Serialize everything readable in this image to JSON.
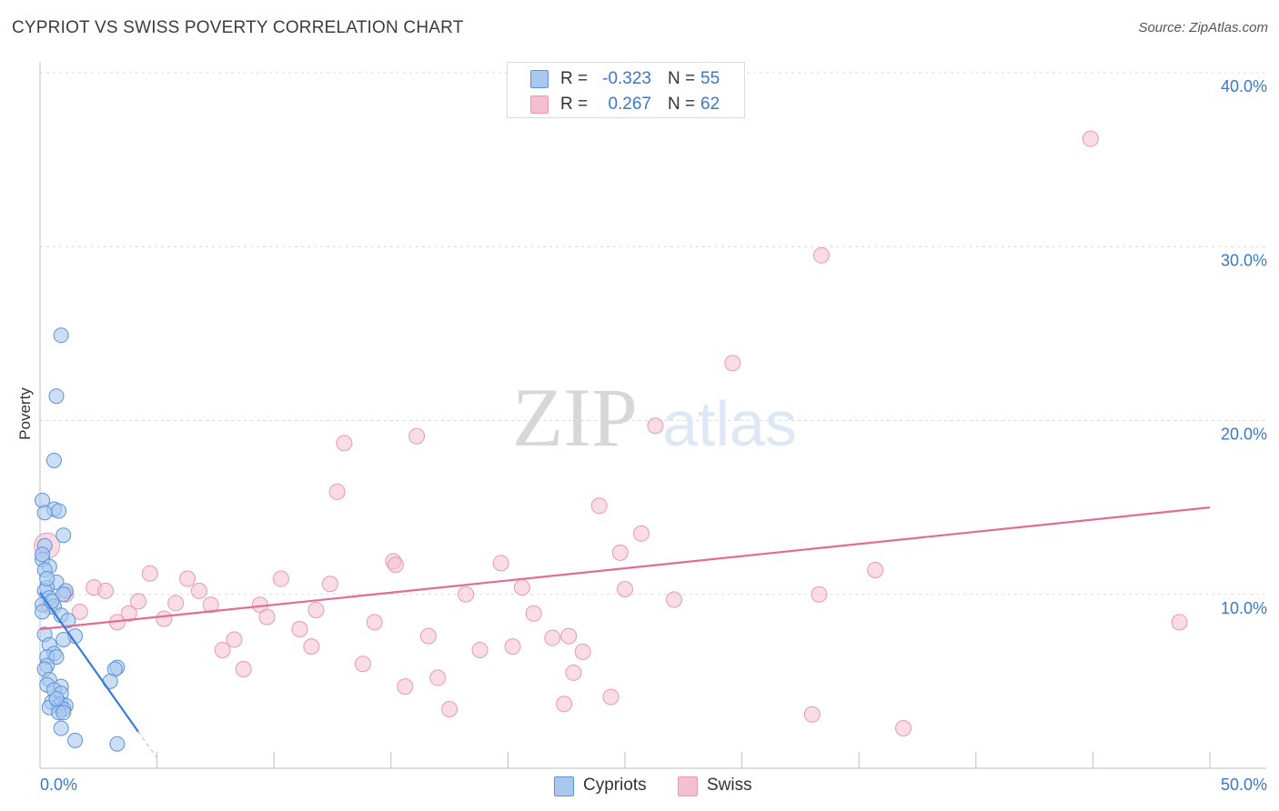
{
  "title": "CYPRIOT VS SWISS POVERTY CORRELATION CHART",
  "source": "Source: ZipAtlas.com",
  "watermark": {
    "zip": "ZIP",
    "atlas": "atlas"
  },
  "legend_top": {
    "rows": [
      {
        "r_label": "R =",
        "r_value": "-0.323",
        "n_label": "N =",
        "n_value": "55"
      },
      {
        "r_label": "R =",
        "r_value": "0.267",
        "n_label": "N =",
        "n_value": "62"
      }
    ]
  },
  "legend_bottom": {
    "cypriots": "Cypriots",
    "swiss": "Swiss"
  },
  "colors": {
    "cypriots_fill": "#a9c8f0",
    "cypriots_stroke": "#5b93d9",
    "cypriots_line": "#3a7bd5",
    "swiss_fill": "#f6bfd0",
    "swiss_stroke": "#e899b4",
    "swiss_line": "#e36b96",
    "tick_text": "#3b78c8",
    "grid": "#d8d8d8"
  },
  "chart_data": {
    "type": "scatter",
    "title": "CYPRIOT VS SWISS POVERTY CORRELATION CHART",
    "xlabel": "",
    "ylabel": "Poverty",
    "xlim": [
      0,
      50
    ],
    "ylim": [
      0,
      40
    ],
    "x_tick_labels": [
      "0.0%",
      "50.0%"
    ],
    "y_ticks": [
      10,
      20,
      30,
      40
    ],
    "y_tick_labels": [
      "10.0%",
      "20.0%",
      "30.0%",
      "40.0%"
    ],
    "grid": true,
    "legend_position": "top-center",
    "series": [
      {
        "name": "Cypriots",
        "R": -0.323,
        "N": 55,
        "trend": {
          "x0": 0.0,
          "y0": 10.1,
          "x1": 4.2,
          "y1": 2.1,
          "dash_to_x": 5.0,
          "dash_to_y": 0.6
        },
        "points": [
          [
            0.9,
            24.9
          ],
          [
            0.7,
            21.4
          ],
          [
            0.6,
            17.7
          ],
          [
            0.1,
            15.4
          ],
          [
            0.6,
            14.9
          ],
          [
            0.8,
            14.8
          ],
          [
            0.2,
            14.7
          ],
          [
            1.0,
            13.4
          ],
          [
            0.2,
            12.8
          ],
          [
            0.1,
            12.0
          ],
          [
            0.4,
            11.6
          ],
          [
            0.2,
            11.4
          ],
          [
            0.7,
            10.7
          ],
          [
            0.3,
            10.4
          ],
          [
            0.2,
            10.2
          ],
          [
            1.1,
            10.2
          ],
          [
            0.4,
            9.8
          ],
          [
            1.0,
            10.0
          ],
          [
            0.1,
            9.4
          ],
          [
            0.6,
            9.3
          ],
          [
            0.1,
            9.0
          ],
          [
            0.9,
            8.8
          ],
          [
            0.2,
            7.7
          ],
          [
            1.5,
            7.6
          ],
          [
            1.0,
            7.4
          ],
          [
            0.4,
            7.1
          ],
          [
            0.6,
            6.6
          ],
          [
            0.3,
            6.4
          ],
          [
            0.7,
            6.4
          ],
          [
            0.3,
            5.9
          ],
          [
            3.3,
            5.8
          ],
          [
            3.2,
            5.7
          ],
          [
            0.2,
            5.7
          ],
          [
            0.4,
            5.1
          ],
          [
            3.0,
            5.0
          ],
          [
            0.3,
            4.8
          ],
          [
            0.9,
            4.7
          ],
          [
            0.6,
            4.5
          ],
          [
            0.9,
            4.3
          ],
          [
            0.5,
            3.8
          ],
          [
            0.9,
            3.7
          ],
          [
            0.8,
            3.6
          ],
          [
            1.1,
            3.6
          ],
          [
            0.4,
            3.5
          ],
          [
            1.0,
            3.4
          ],
          [
            0.8,
            3.2
          ],
          [
            1.0,
            3.2
          ],
          [
            0.9,
            2.3
          ],
          [
            1.5,
            1.6
          ],
          [
            3.3,
            1.4
          ],
          [
            0.1,
            12.3
          ],
          [
            0.5,
            9.6
          ],
          [
            0.3,
            10.9
          ],
          [
            1.2,
            8.5
          ],
          [
            0.7,
            4.0
          ]
        ]
      },
      {
        "name": "Swiss",
        "R": 0.267,
        "N": 62,
        "trend": {
          "x0": 0.0,
          "y0": 8.0,
          "x1": 50.0,
          "y1": 15.0
        },
        "points": [
          [
            44.9,
            36.2
          ],
          [
            33.4,
            29.5
          ],
          [
            29.6,
            23.3
          ],
          [
            26.3,
            19.7
          ],
          [
            16.1,
            19.1
          ],
          [
            13.0,
            18.7
          ],
          [
            12.7,
            15.9
          ],
          [
            23.9,
            15.1
          ],
          [
            25.7,
            13.5
          ],
          [
            24.8,
            12.4
          ],
          [
            15.1,
            11.9
          ],
          [
            19.7,
            11.8
          ],
          [
            15.2,
            11.7
          ],
          [
            35.7,
            11.4
          ],
          [
            4.7,
            11.2
          ],
          [
            10.3,
            10.9
          ],
          [
            6.3,
            10.9
          ],
          [
            12.4,
            10.6
          ],
          [
            2.3,
            10.4
          ],
          [
            2.8,
            10.2
          ],
          [
            20.6,
            10.4
          ],
          [
            25.0,
            10.3
          ],
          [
            6.8,
            10.2
          ],
          [
            1.1,
            10.0
          ],
          [
            18.2,
            10.0
          ],
          [
            33.3,
            10.0
          ],
          [
            4.2,
            9.6
          ],
          [
            0.4,
            9.3
          ],
          [
            27.1,
            9.7
          ],
          [
            5.8,
            9.5
          ],
          [
            7.3,
            9.4
          ],
          [
            9.4,
            9.4
          ],
          [
            11.8,
            9.1
          ],
          [
            1.7,
            9.0
          ],
          [
            3.8,
            8.9
          ],
          [
            21.1,
            8.9
          ],
          [
            9.7,
            8.7
          ],
          [
            5.3,
            8.6
          ],
          [
            3.3,
            8.4
          ],
          [
            14.3,
            8.4
          ],
          [
            11.1,
            8.0
          ],
          [
            48.7,
            8.4
          ],
          [
            16.6,
            7.6
          ],
          [
            22.6,
            7.6
          ],
          [
            21.9,
            7.5
          ],
          [
            8.3,
            7.4
          ],
          [
            11.6,
            7.0
          ],
          [
            20.2,
            7.0
          ],
          [
            18.8,
            6.8
          ],
          [
            7.8,
            6.8
          ],
          [
            23.2,
            6.7
          ],
          [
            13.8,
            6.0
          ],
          [
            8.7,
            5.7
          ],
          [
            22.8,
            5.5
          ],
          [
            17.0,
            5.2
          ],
          [
            15.6,
            4.7
          ],
          [
            24.4,
            4.1
          ],
          [
            17.5,
            3.4
          ],
          [
            22.4,
            3.7
          ],
          [
            33.0,
            3.1
          ],
          [
            36.9,
            2.3
          ],
          [
            0.3,
            12.8
          ]
        ]
      }
    ]
  }
}
